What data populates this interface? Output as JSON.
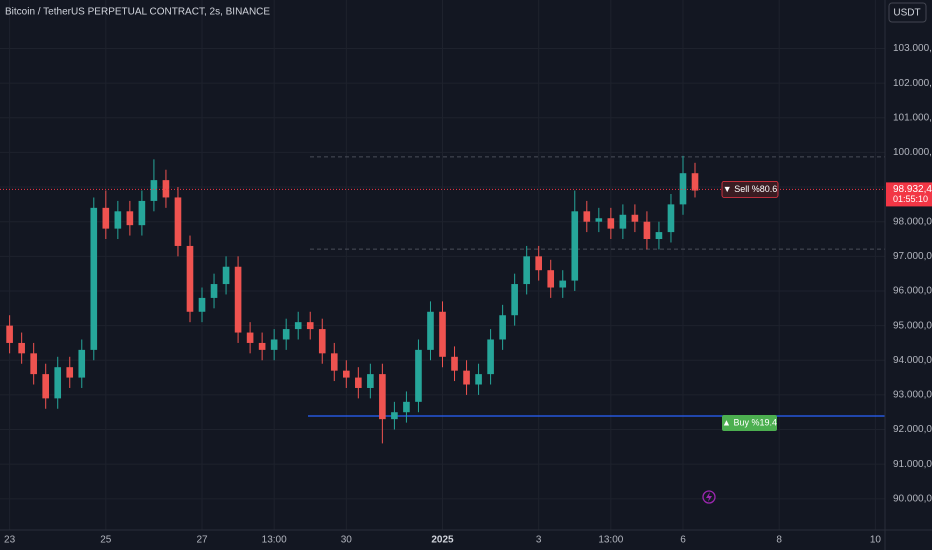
{
  "header": {
    "title": "Bitcoin / TetherUS PERPETUAL CONTRACT, 2s, BINANCE",
    "currency": "USDT"
  },
  "chart_data": {
    "type": "candlestick",
    "x": [
      0,
      0.25,
      0.5,
      0.75,
      1,
      1.25,
      1.5,
      1.75,
      2,
      2.25,
      2.5,
      2.75,
      3,
      3.25,
      3.5,
      3.75,
      4,
      4.25,
      4.5,
      4.75,
      5,
      5.25,
      5.5,
      5.75,
      6,
      6.25,
      6.5,
      6.75,
      7,
      7.25,
      7.5,
      7.75,
      8,
      8.25,
      8.5,
      8.75,
      9,
      9.25,
      9.5,
      9.75,
      10,
      10.25,
      10.5,
      10.75,
      11,
      11.25,
      11.5,
      11.75,
      12,
      12.25,
      12.5,
      12.75,
      13,
      13.25,
      13.5,
      13.75,
      14,
      14.25
    ],
    "open": [
      95000,
      94500,
      94200,
      93600,
      92900,
      93800,
      93500,
      94300,
      98400,
      97800,
      98300,
      97900,
      98600,
      99200,
      98700,
      97300,
      95400,
      95800,
      96200,
      96700,
      94800,
      94500,
      94300,
      94600,
      94900,
      95100,
      94900,
      94200,
      93700,
      93500,
      93200,
      93600,
      92300,
      92500,
      92800,
      94300,
      95400,
      94100,
      93700,
      93300,
      93600,
      94600,
      95300,
      96200,
      97000,
      96600,
      96100,
      96300,
      98300,
      98000,
      98100,
      97800,
      98200,
      98000,
      97500,
      97700,
      98500,
      99400
    ],
    "high": [
      95300,
      94800,
      94500,
      93900,
      94100,
      94100,
      94600,
      98700,
      98900,
      98600,
      98600,
      98900,
      99800,
      99500,
      99000,
      97600,
      96100,
      96500,
      97000,
      97000,
      95100,
      94800,
      94900,
      95200,
      95400,
      95400,
      95200,
      94500,
      94000,
      93800,
      93900,
      93900,
      92800,
      93100,
      94600,
      95700,
      95700,
      94400,
      94000,
      93900,
      94900,
      95600,
      96500,
      97300,
      97300,
      96900,
      96600,
      98900,
      98600,
      98400,
      98400,
      98500,
      98500,
      98300,
      98000,
      98800,
      99900,
      99700
    ],
    "low": [
      94200,
      93900,
      93300,
      92600,
      92600,
      93200,
      93200,
      94000,
      97500,
      97500,
      97600,
      97600,
      98300,
      98400,
      97000,
      95100,
      95100,
      95500,
      95900,
      94500,
      94200,
      94000,
      94000,
      94300,
      94600,
      94600,
      93900,
      93400,
      93200,
      92900,
      92900,
      91600,
      92000,
      92200,
      92500,
      94000,
      93800,
      93400,
      93000,
      93000,
      93300,
      94300,
      95000,
      95900,
      96300,
      95800,
      95800,
      96000,
      97700,
      97700,
      97500,
      97500,
      97700,
      97200,
      97200,
      97400,
      98200,
      98700
    ],
    "close": [
      94500,
      94200,
      93600,
      92900,
      93800,
      93500,
      94300,
      98400,
      97800,
      98300,
      97900,
      98600,
      99200,
      98700,
      97300,
      95400,
      95800,
      96200,
      96700,
      94800,
      94500,
      94300,
      94600,
      94900,
      95100,
      94900,
      94200,
      93700,
      93500,
      93200,
      93600,
      92300,
      92500,
      92800,
      94300,
      95400,
      94100,
      93700,
      93300,
      93600,
      94600,
      95300,
      96200,
      97000,
      96600,
      96100,
      96300,
      98300,
      98000,
      98100,
      97800,
      98200,
      98000,
      97500,
      97700,
      98500,
      99400,
      98900
    ],
    "up_color": "#26a69a",
    "down_color": "#ef5350",
    "xlim": [
      -0.2,
      18.2
    ],
    "xticks": [
      {
        "value": 0,
        "label": "23"
      },
      {
        "value": 2,
        "label": "25"
      },
      {
        "value": 4,
        "label": "27"
      },
      {
        "value": 5.5,
        "label": "13:00"
      },
      {
        "value": 7,
        "label": "30"
      },
      {
        "value": 9,
        "label": "2025"
      },
      {
        "value": 11,
        "label": "3"
      },
      {
        "value": 12.5,
        "label": "13:00"
      },
      {
        "value": 14,
        "label": "6"
      },
      {
        "value": 16,
        "label": "8"
      },
      {
        "value": 18,
        "label": "10"
      }
    ],
    "ylim": [
      89100,
      104400
    ],
    "yticks": [
      {
        "value": 90000,
        "label": "90.000,0"
      },
      {
        "value": 91000,
        "label": "91.000,0"
      },
      {
        "value": 92000,
        "label": "92.000,0"
      },
      {
        "value": 93000,
        "label": "93.000,0"
      },
      {
        "value": 94000,
        "label": "94.000,0"
      },
      {
        "value": 95000,
        "label": "95.000,0"
      },
      {
        "value": 96000,
        "label": "96.000,0"
      },
      {
        "value": 97000,
        "label": "97.000,0"
      },
      {
        "value": 98000,
        "label": "98.000,0"
      },
      {
        "value": 99000,
        "label": "99.000,0"
      },
      {
        "value": 100000,
        "label": "100.000,0"
      },
      {
        "value": 101000,
        "label": "101.000,0"
      },
      {
        "value": 102000,
        "label": "102.000,0"
      },
      {
        "value": 103000,
        "label": "103.000,0"
      }
    ],
    "grid": true,
    "last_price": {
      "value": 98932.4,
      "label": "98.932,4",
      "countdown": "01:55:10",
      "color": "#f23645"
    },
    "sell_signal": {
      "label": "▼ Sell %80.6",
      "color": "#f23645"
    },
    "buy_signal": {
      "label": "▲ Buy %19.4",
      "value": 92390,
      "color": "#4caf50",
      "line_color": "#2962ff"
    },
    "dashed_levels": [
      99870,
      97210
    ]
  }
}
